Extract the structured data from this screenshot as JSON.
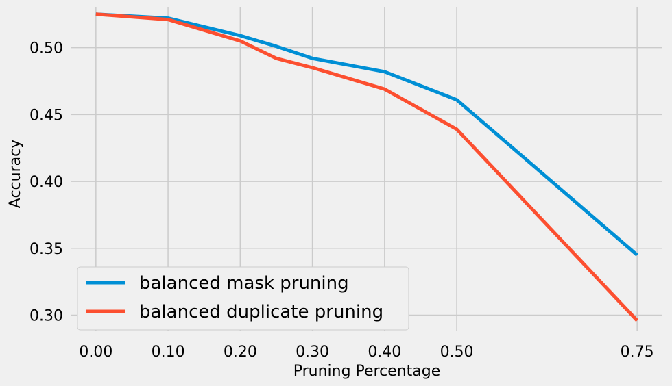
{
  "chart_data": {
    "type": "line",
    "title": "",
    "xlabel": "Pruning Percentage",
    "ylabel": "Accuracy",
    "x": [
      0.0,
      0.1,
      0.2,
      0.25,
      0.3,
      0.4,
      0.5,
      0.75
    ],
    "xticks": [
      0.0,
      0.1,
      0.2,
      0.3,
      0.4,
      0.5,
      0.75
    ],
    "xtick_labels": [
      "0.00",
      "0.10",
      "0.20",
      "0.30",
      "0.40",
      "0.50",
      "0.75"
    ],
    "yticks": [
      0.3,
      0.35,
      0.4,
      0.45,
      0.5
    ],
    "ytick_labels": [
      "0.30",
      "0.35",
      "0.40",
      "0.45",
      "0.50"
    ],
    "xlim": [
      -0.035,
      0.785
    ],
    "ylim": [
      0.288,
      0.5305
    ],
    "grid": true,
    "legend_position": "lower-left",
    "series": [
      {
        "name": "balanced mask pruning",
        "color": "#008fd5",
        "values": [
          0.525,
          0.522,
          0.509,
          0.501,
          0.492,
          0.482,
          0.461,
          0.345
        ]
      },
      {
        "name": "balanced duplicate pruning",
        "color": "#fc4f30",
        "values": [
          0.525,
          0.521,
          0.505,
          0.492,
          0.485,
          0.469,
          0.439,
          0.296
        ]
      }
    ]
  }
}
